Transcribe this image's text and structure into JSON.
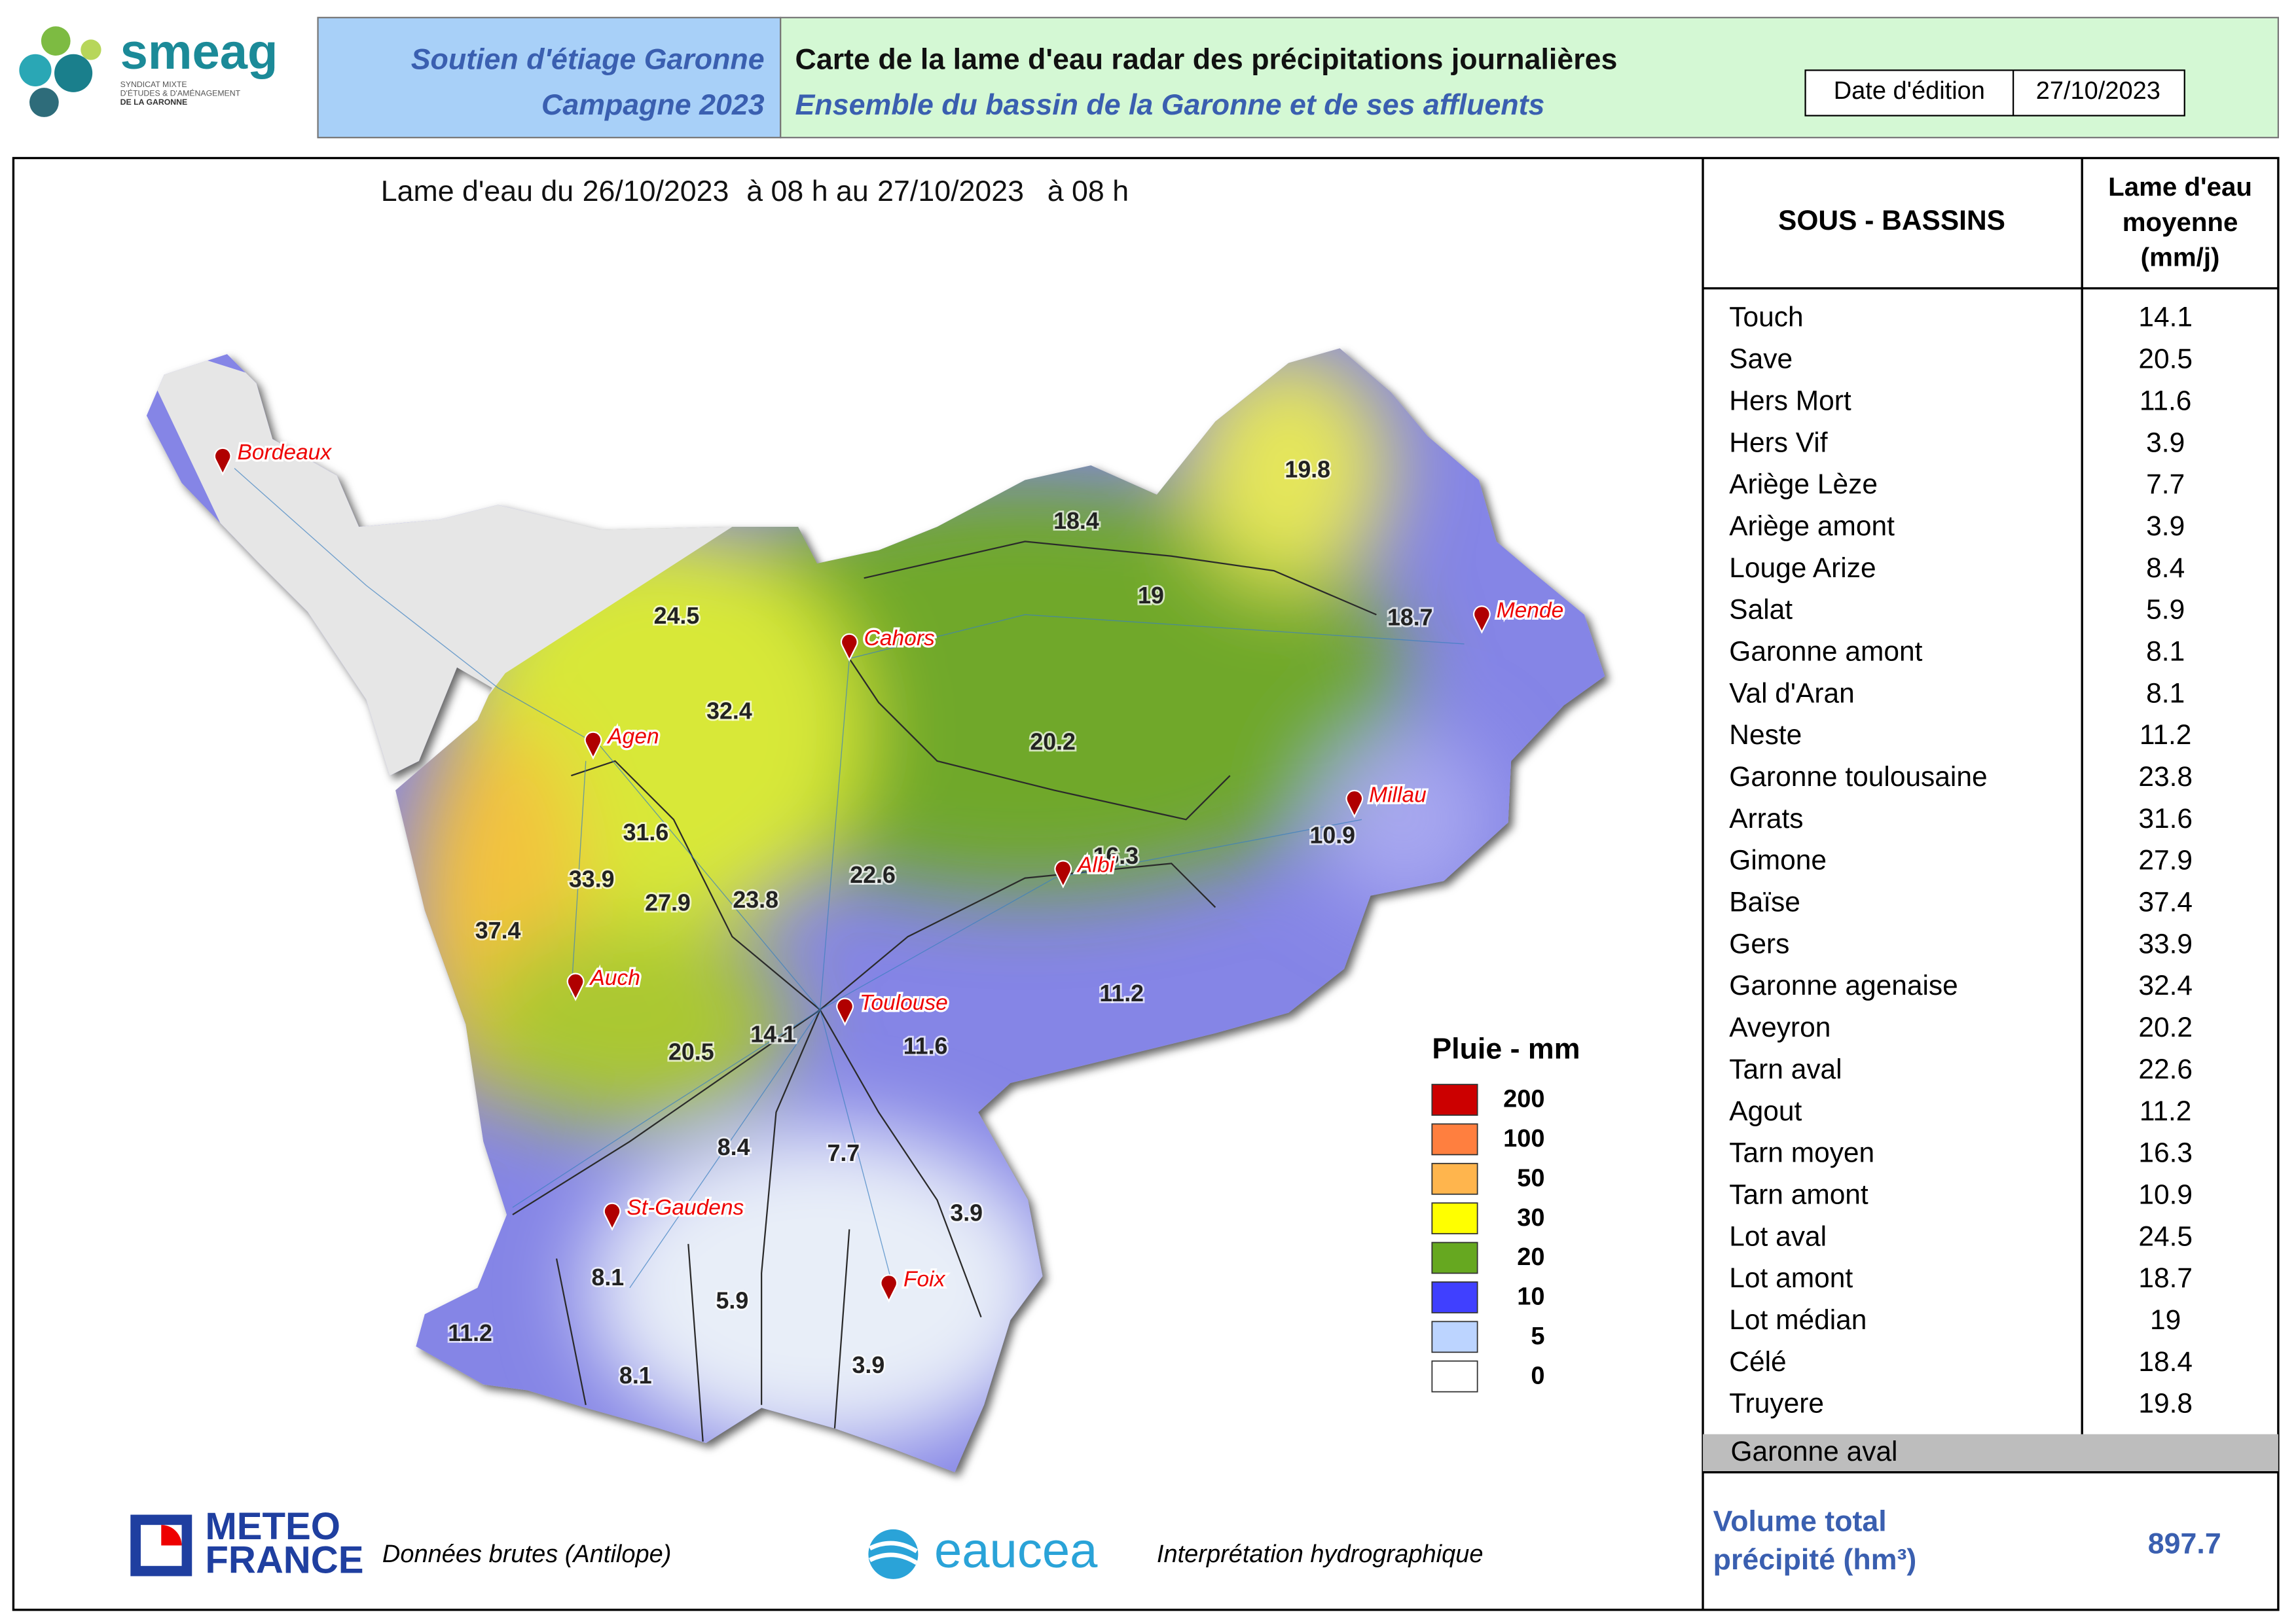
{
  "header": {
    "logo": "smeag",
    "logo_sub": [
      "SYNDICAT MIXTE",
      "D'ÉTUDES & D'AMÉNAGEMENT",
      "DE LA GARONNE"
    ],
    "campaign": [
      "Soutien d'étiage Garonne",
      "Campagne 2023"
    ],
    "title": "Carte de la lame d'eau radar des précipitations journalières",
    "subtitle": "Ensemble du bassin de la Garonne et de ses affluents",
    "date_label": "Date d'édition",
    "date": "27/10/2023"
  },
  "map": {
    "period": [
      "Lame d'eau du",
      "26/10/2023",
      "à 08 h au",
      "27/10/2023",
      "à 08 h"
    ],
    "cities": [
      "Bordeaux",
      "Cahors",
      "Mende",
      "Agen",
      "Millau",
      "Albi",
      "Auch",
      "Toulouse",
      "St-Gaudens",
      "Foix"
    ],
    "basin_values": [
      19.8,
      18.4,
      19,
      18.7,
      24.5,
      32.4,
      20.2,
      31.6,
      33.9,
      27.9,
      23.8,
      22.6,
      16.3,
      10.9,
      37.4,
      11.2,
      14.1,
      20.5,
      11.6,
      8.4,
      7.7,
      3.9,
      8.1,
      5.9,
      11.2,
      8.1,
      3.9
    ],
    "legend": {
      "title": "Pluie - mm",
      "levels": [
        {
          "value": 200,
          "color": "#cc0000"
        },
        {
          "value": 100,
          "color": "#ff7f3f"
        },
        {
          "value": 50,
          "color": "#ffb54d"
        },
        {
          "value": 30,
          "color": "#ffff00"
        },
        {
          "value": 20,
          "color": "#66a820"
        },
        {
          "value": 10,
          "color": "#4040ff"
        },
        {
          "value": 5,
          "color": "#bcd4ff"
        },
        {
          "value": 0,
          "color": "#ffffff"
        }
      ]
    }
  },
  "table": {
    "headers": [
      "SOUS - BASSINS",
      [
        "Lame d'eau",
        "moyenne",
        "(mm/j)"
      ]
    ],
    "rows": [
      [
        "Touch",
        14.1
      ],
      [
        "Save",
        20.5
      ],
      [
        "Hers Mort",
        11.6
      ],
      [
        "Hers Vif",
        3.9
      ],
      [
        "Ariège Lèze",
        7.7
      ],
      [
        "Ariège amont",
        3.9
      ],
      [
        "Louge Arize",
        8.4
      ],
      [
        "Salat",
        5.9
      ],
      [
        "Garonne amont",
        8.1
      ],
      [
        "Val d'Aran",
        8.1
      ],
      [
        "Neste",
        11.2
      ],
      [
        "Garonne toulousaine",
        23.8
      ],
      [
        "Arrats",
        31.6
      ],
      [
        "Gimone",
        27.9
      ],
      [
        "Baïse",
        37.4
      ],
      [
        "Gers",
        33.9
      ],
      [
        "Garonne agenaise",
        32.4
      ],
      [
        "Aveyron",
        20.2
      ],
      [
        "Tarn aval",
        22.6
      ],
      [
        "Agout",
        11.2
      ],
      [
        "Tarn moyen",
        16.3
      ],
      [
        "Tarn amont",
        10.9
      ],
      [
        "Lot aval",
        24.5
      ],
      [
        "Lot amont",
        18.7
      ],
      [
        "Lot médian",
        19
      ],
      [
        "Célé",
        18.4
      ],
      [
        "Truyere",
        19.8
      ]
    ],
    "extra_row": "Garonne aval",
    "total_label": [
      "Volume total",
      "précipité (hm³)"
    ],
    "total": 897.7
  },
  "footer": {
    "meteo": [
      "METEO",
      "FRANCE"
    ],
    "meteo_note": "Données brutes (Antilope)",
    "eaucea": "eaucea",
    "eaucea_note": "Interprétation hydrographique"
  }
}
